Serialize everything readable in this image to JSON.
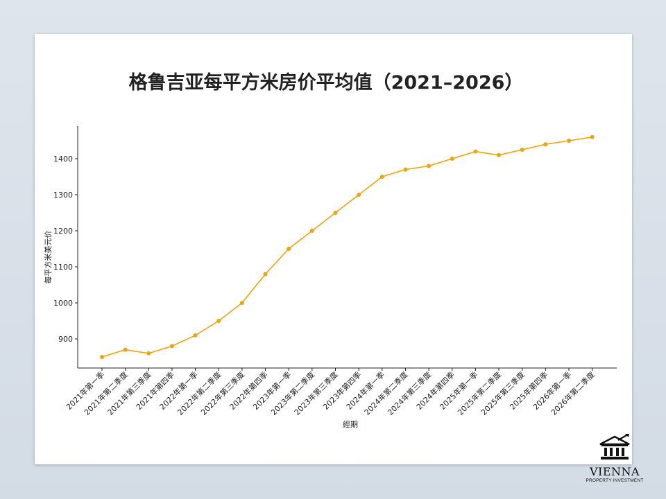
{
  "chart_data": {
    "type": "line",
    "title": "格鲁吉亚每平方米房价平均值（2021–2026）",
    "xlabel": "經期",
    "ylabel": "每平方米美元价",
    "categories": [
      "2021年第一季",
      "2021年第二季度",
      "2021年第三季度",
      "2021年第四季",
      "2022年第一季",
      "2022年第二季度",
      "2022年第三季度",
      "2022年第四季",
      "2023年第一季",
      "2023年第二季度",
      "2023年第三季度",
      "2023年第四季",
      "2024年第一季",
      "2024年第二季度",
      "2024年第三季度",
      "2024年第四季",
      "2025年第一季",
      "2025年第二季度",
      "2025年第三季度",
      "2025年第四季",
      "2026年第一季",
      "2026年第二季度"
    ],
    "series": [
      {
        "values": [
          850,
          870,
          860,
          880,
          910,
          950,
          1000,
          1080,
          1150,
          1200,
          1250,
          1300,
          1350,
          1370,
          1380,
          1400,
          1420,
          1410,
          1425,
          1440,
          1450,
          1460
        ],
        "color": "#f0a30a"
      }
    ],
    "yticks": [
      900,
      1000,
      1100,
      1200,
      1300,
      1400
    ],
    "ylim": [
      835,
      1490
    ],
    "grid": false,
    "legend": "none"
  },
  "branding": {
    "name": "VIENNA",
    "tagline": "PROPERTY INVESTMENT",
    "icon": "bank-building-icon"
  }
}
